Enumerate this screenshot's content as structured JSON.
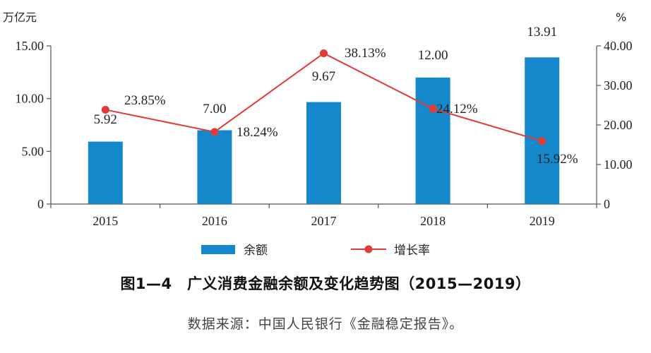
{
  "caption": "图1—4　广义消费金融余额及变化趋势图（2015—2019）",
  "source": "数据来源：中国人民银行《金融稳定报告》。",
  "colors": {
    "bar": "#1588CC",
    "line": "#E23A36",
    "axis": "#555555"
  },
  "chart_data": {
    "type": "bar",
    "categories": [
      "2015",
      "2016",
      "2017",
      "2018",
      "2019"
    ],
    "y_left": {
      "unit_label": "万亿元",
      "ylim": [
        0,
        15
      ],
      "ticks": [
        0,
        5,
        10,
        15
      ],
      "tick_labels": [
        "0",
        "5.00",
        "10.00",
        "15.00"
      ]
    },
    "y_right": {
      "unit_label": "%",
      "ylim": [
        0,
        40
      ],
      "ticks": [
        0,
        10,
        20,
        30,
        40
      ],
      "tick_labels": [
        "0",
        "10.00",
        "20.00",
        "30.00",
        "40.00"
      ]
    },
    "series": [
      {
        "name": "余额",
        "type": "bar",
        "axis": "left",
        "values": [
          5.92,
          7.0,
          9.67,
          12.0,
          13.91
        ],
        "labels": [
          "5.92",
          "7.00",
          "9.67",
          "12.00",
          "13.91"
        ]
      },
      {
        "name": "增长率",
        "type": "line",
        "axis": "right",
        "values": [
          23.85,
          18.24,
          38.13,
          24.12,
          15.92
        ],
        "labels": [
          "23.85%",
          "18.24%",
          "38.13%",
          "24.12%",
          "15.92%"
        ]
      }
    ],
    "grid": false,
    "legend": "bottom"
  }
}
